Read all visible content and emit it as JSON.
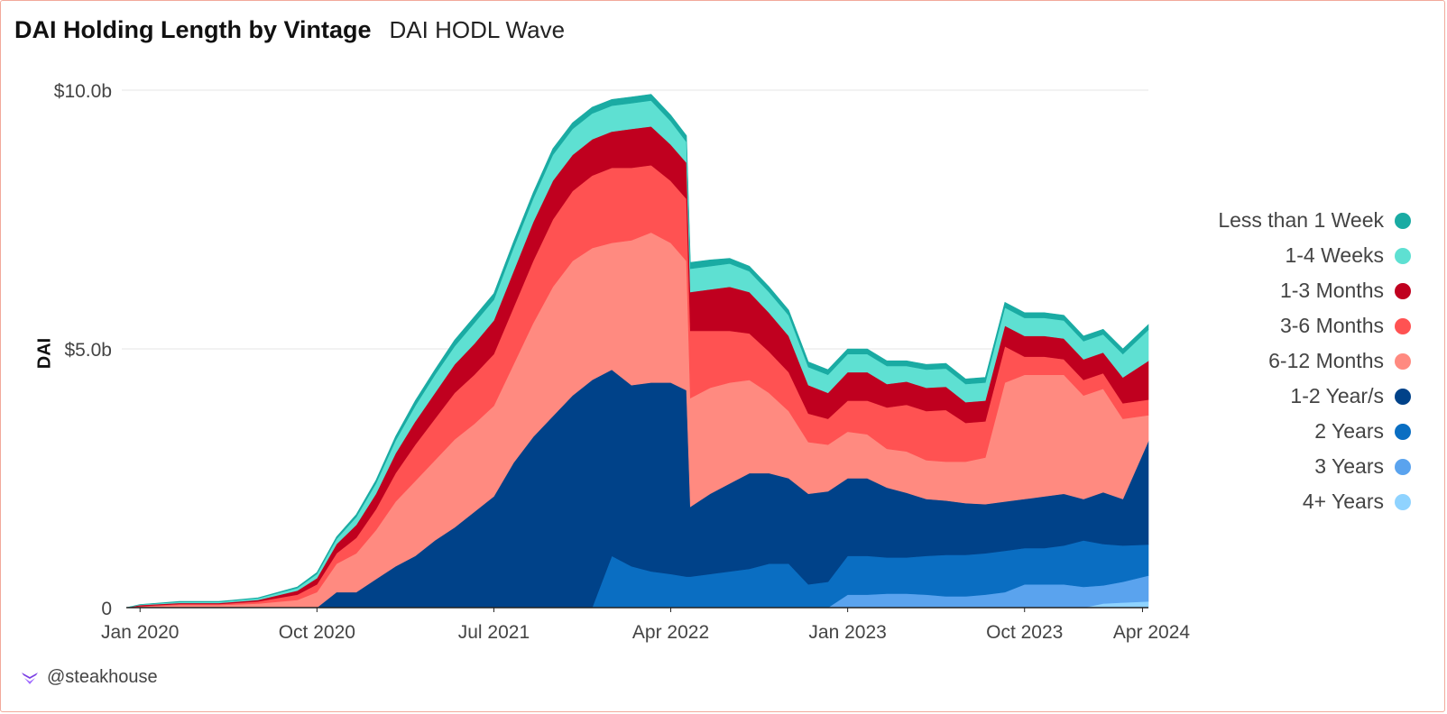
{
  "header": {
    "title": "DAI Holding Length by Vintage",
    "subtitle": "DAI HODL Wave"
  },
  "footer": {
    "brand": "@steakhouse"
  },
  "colors": {
    "gridline": "#e6e6e6",
    "axis": "#222222",
    "text": "#444444"
  },
  "chart_data": {
    "type": "area",
    "stacked": true,
    "title": "DAI Holding Length by Vintage",
    "subtitle": "DAI HODL Wave",
    "xlabel": "",
    "ylabel": "DAI",
    "x_unit": "months since Jan 2020",
    "xlim": [
      -0.7,
      51.3
    ],
    "ylim": [
      0,
      10
    ],
    "y_unit": "billions of DAI",
    "y_ticks": [
      {
        "value": 0,
        "label": "0"
      },
      {
        "value": 5,
        "label": "$5.0b"
      },
      {
        "value": 10,
        "label": "$10.0b"
      }
    ],
    "x_ticks": [
      {
        "value": 0,
        "label": "Jan 2020"
      },
      {
        "value": 9,
        "label": "Oct 2020"
      },
      {
        "value": 18,
        "label": "Jul 2021"
      },
      {
        "value": 27,
        "label": "Apr 2022"
      },
      {
        "value": 36,
        "label": "Jan 2023"
      },
      {
        "value": 45,
        "label": "Oct 2023"
      },
      {
        "value": 51,
        "label": "Apr 2024"
      }
    ],
    "grid": true,
    "legend_position": "right",
    "x": [
      -0.7,
      0,
      2,
      4,
      6,
      8,
      9,
      10,
      11,
      12,
      13,
      14,
      15,
      16,
      17,
      18,
      19,
      20,
      21,
      22,
      23,
      24,
      25,
      26,
      27,
      27.8,
      28,
      29,
      30,
      31,
      32,
      33,
      34,
      35,
      36,
      37,
      38,
      39,
      40,
      41,
      42,
      43,
      44,
      45,
      46,
      47,
      48,
      49,
      50,
      51.3
    ],
    "series": [
      {
        "name": "4+ Years",
        "color": "#8fd3ff",
        "values": [
          0,
          0,
          0,
          0,
          0,
          0,
          0,
          0,
          0,
          0,
          0,
          0,
          0,
          0,
          0,
          0,
          0,
          0,
          0,
          0,
          0,
          0,
          0,
          0,
          0,
          0,
          0,
          0,
          0,
          0,
          0,
          0,
          0,
          0,
          0,
          0,
          0,
          0,
          0,
          0,
          0,
          0,
          0,
          0,
          0,
          0,
          0,
          0.08,
          0.1,
          0.12
        ]
      },
      {
        "name": "3 Years",
        "color": "#5aa3ee",
        "values": [
          0,
          0,
          0,
          0,
          0,
          0,
          0,
          0,
          0,
          0,
          0,
          0,
          0,
          0,
          0,
          0,
          0,
          0,
          0,
          0,
          0,
          0,
          0,
          0,
          0,
          0,
          0,
          0,
          0,
          0,
          0,
          0,
          0,
          0,
          0.25,
          0.25,
          0.27,
          0.27,
          0.25,
          0.22,
          0.22,
          0.25,
          0.3,
          0.45,
          0.45,
          0.45,
          0.4,
          0.35,
          0.4,
          0.5
        ]
      },
      {
        "name": "2 Years",
        "color": "#0a6ec2",
        "values": [
          0,
          0,
          0,
          0,
          0,
          0,
          0,
          0,
          0,
          0,
          0,
          0,
          0,
          0,
          0,
          0,
          0,
          0,
          0,
          0,
          0,
          1.0,
          0.8,
          0.7,
          0.65,
          0.6,
          0.6,
          0.65,
          0.7,
          0.75,
          0.85,
          0.85,
          0.45,
          0.5,
          0.75,
          0.75,
          0.7,
          0.7,
          0.75,
          0.8,
          0.8,
          0.8,
          0.8,
          0.7,
          0.7,
          0.75,
          0.9,
          0.8,
          0.7,
          0.6
        ]
      },
      {
        "name": "1-2 Year/s",
        "color": "#004289",
        "values": [
          0,
          0,
          0,
          0,
          0,
          0,
          0,
          0.3,
          0.3,
          0.55,
          0.8,
          1.0,
          1.3,
          1.55,
          1.85,
          2.15,
          2.8,
          3.3,
          3.7,
          4.1,
          4.4,
          3.6,
          3.5,
          3.65,
          3.7,
          3.6,
          1.35,
          1.55,
          1.7,
          1.85,
          1.75,
          1.65,
          1.75,
          1.75,
          1.5,
          1.5,
          1.35,
          1.25,
          1.1,
          1.05,
          1.0,
          0.95,
          0.95,
          0.95,
          1.0,
          1.0,
          0.8,
          1.0,
          0.9,
          2.0
        ]
      },
      {
        "name": "6-12 Months",
        "color": "#ff8a80",
        "values": [
          0,
          0.02,
          0.05,
          0.05,
          0.08,
          0.15,
          0.3,
          0.55,
          0.75,
          0.95,
          1.25,
          1.45,
          1.55,
          1.7,
          1.7,
          1.75,
          1.9,
          2.2,
          2.5,
          2.6,
          2.55,
          2.45,
          2.8,
          2.9,
          2.7,
          2.5,
          2.1,
          2.05,
          1.95,
          1.8,
          1.55,
          1.3,
          1.0,
          0.9,
          0.9,
          0.85,
          0.75,
          0.8,
          0.75,
          0.75,
          0.8,
          0.9,
          2.3,
          2.4,
          2.35,
          2.3,
          2.0,
          2.0,
          1.55,
          0.5
        ]
      },
      {
        "name": "3-6 Months",
        "color": "#ff5252",
        "values": [
          0,
          0.01,
          0.02,
          0.02,
          0.04,
          0.1,
          0.15,
          0.2,
          0.3,
          0.4,
          0.55,
          0.7,
          0.8,
          0.9,
          0.95,
          1.0,
          1.1,
          1.2,
          1.3,
          1.35,
          1.4,
          1.45,
          1.4,
          1.3,
          1.2,
          1.2,
          1.3,
          1.1,
          1.0,
          0.9,
          0.8,
          0.75,
          0.55,
          0.5,
          0.6,
          0.65,
          0.8,
          0.9,
          0.95,
          1.0,
          0.75,
          0.7,
          0.7,
          0.35,
          0.35,
          0.3,
          0.3,
          0.3,
          0.3,
          0.3
        ]
      },
      {
        "name": "1-3 Months",
        "color": "#c0001f",
        "values": [
          0,
          0.02,
          0.02,
          0.02,
          0.03,
          0.08,
          0.12,
          0.18,
          0.25,
          0.3,
          0.38,
          0.45,
          0.5,
          0.55,
          0.6,
          0.65,
          0.7,
          0.75,
          0.75,
          0.7,
          0.7,
          0.7,
          0.75,
          0.75,
          0.7,
          0.7,
          0.75,
          0.8,
          0.85,
          0.8,
          0.75,
          0.7,
          0.55,
          0.5,
          0.55,
          0.55,
          0.45,
          0.45,
          0.45,
          0.45,
          0.4,
          0.4,
          0.4,
          0.4,
          0.4,
          0.4,
          0.4,
          0.4,
          0.5,
          0.75
        ]
      },
      {
        "name": "1-4 Weeks",
        "color": "#5ee0d2",
        "values": [
          0,
          0.01,
          0.02,
          0.02,
          0.03,
          0.05,
          0.08,
          0.1,
          0.15,
          0.2,
          0.25,
          0.3,
          0.35,
          0.35,
          0.4,
          0.4,
          0.45,
          0.45,
          0.5,
          0.5,
          0.5,
          0.5,
          0.5,
          0.5,
          0.45,
          0.4,
          0.45,
          0.45,
          0.45,
          0.4,
          0.4,
          0.4,
          0.35,
          0.35,
          0.35,
          0.35,
          0.35,
          0.3,
          0.35,
          0.35,
          0.35,
          0.35,
          0.35,
          0.35,
          0.35,
          0.35,
          0.35,
          0.35,
          0.45,
          0.6
        ]
      },
      {
        "name": "Less than 1 Week",
        "color": "#1aaba3",
        "values": [
          0,
          0,
          0.01,
          0.01,
          0.01,
          0.02,
          0.03,
          0.04,
          0.05,
          0.06,
          0.08,
          0.1,
          0.1,
          0.12,
          0.12,
          0.12,
          0.12,
          0.12,
          0.12,
          0.12,
          0.12,
          0.12,
          0.12,
          0.12,
          0.12,
          0.12,
          0.12,
          0.12,
          0.1,
          0.1,
          0.1,
          0.1,
          0.1,
          0.1,
          0.1,
          0.1,
          0.1,
          0.1,
          0.1,
          0.1,
          0.1,
          0.1,
          0.1,
          0.1,
          0.1,
          0.1,
          0.1,
          0.1,
          0.1,
          0.1
        ]
      }
    ]
  }
}
